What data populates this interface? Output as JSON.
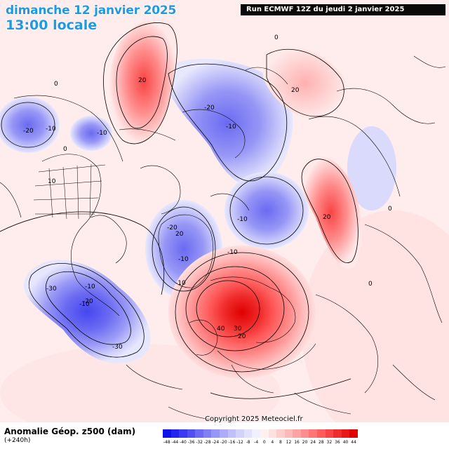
{
  "header": {
    "date_line": "dimanche 12 janvier 2025",
    "time_line": "13:00 locale",
    "run_info": "Run ECMWF 12Z du jeudi 2 janvier 2025"
  },
  "footer": {
    "legend_title": "Anomalie Géop. z500 (dam)",
    "lead_time": "(+240h)",
    "copyright": "Copyright 2025 Meteociel.fr"
  },
  "scale": {
    "ticks": [
      "-48",
      "-44",
      "-40",
      "-36",
      "-32",
      "-28",
      "-24",
      "-20",
      "-16",
      "-12",
      "-8",
      "-4",
      "0",
      "4",
      "8",
      "12",
      "16",
      "20",
      "24",
      "28",
      "32",
      "36",
      "40",
      "44"
    ],
    "colors": [
      "#1010e8",
      "#2424ee",
      "#3a3af0",
      "#5050f0",
      "#6a6af2",
      "#8080f4",
      "#9696f6",
      "#acacf8",
      "#c0c0fa",
      "#d2d2fb",
      "#e2e2fd",
      "#f0f0fe",
      "#fff0f0",
      "#ffe0e0",
      "#ffcccc",
      "#ffb8b8",
      "#ffa2a2",
      "#ff8c8c",
      "#ff7474",
      "#ff5c5c",
      "#f84444",
      "#f02c2c",
      "#e81818",
      "#e00000"
    ]
  },
  "contour_labels": [
    {
      "text": "20"
    },
    {
      "text": "0"
    },
    {
      "text": "0"
    },
    {
      "text": "-20"
    },
    {
      "text": "-10"
    },
    {
      "text": "-10"
    },
    {
      "text": "0"
    },
    {
      "text": "-20"
    },
    {
      "text": "-10"
    },
    {
      "text": "20"
    },
    {
      "text": "10"
    },
    {
      "text": "-10"
    },
    {
      "text": "20"
    },
    {
      "text": "0"
    },
    {
      "text": "20"
    },
    {
      "text": "-10"
    },
    {
      "text": "-10"
    },
    {
      "text": "-20"
    },
    {
      "text": "-10"
    },
    {
      "text": "-10"
    },
    {
      "text": "-30"
    },
    {
      "text": "-10"
    },
    {
      "text": "-20"
    },
    {
      "text": "-30"
    },
    {
      "text": "40"
    },
    {
      "text": "30"
    },
    {
      "text": "20"
    },
    {
      "text": "0"
    }
  ]
}
